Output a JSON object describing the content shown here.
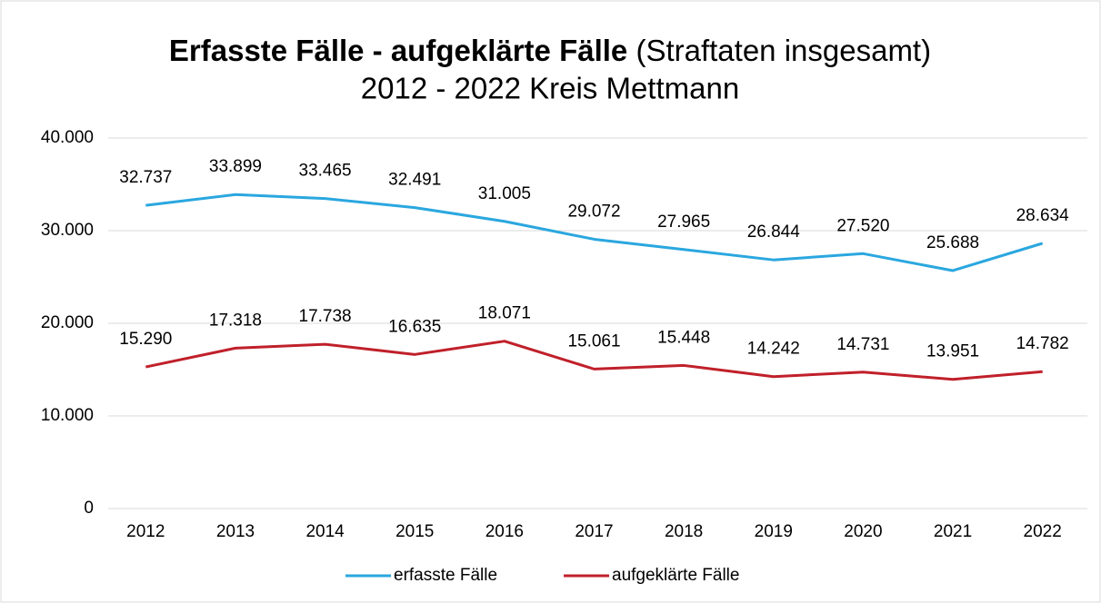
{
  "chart_data": {
    "type": "line",
    "title": "Erfasste Fälle - aufgeklärte Fälle",
    "title_note": "(Straftaten insgesamt)",
    "subtitle": "2012 - 2022 Kreis Mettmann",
    "categories": [
      "2012",
      "2013",
      "2014",
      "2015",
      "2016",
      "2017",
      "2018",
      "2019",
      "2020",
      "2021",
      "2022"
    ],
    "series": [
      {
        "name": "erfasste Fälle",
        "color": "#2aa7df",
        "values": [
          32737,
          33899,
          33465,
          32491,
          31005,
          29072,
          27965,
          26844,
          27520,
          25688,
          28634
        ],
        "value_labels": [
          "32.737",
          "33.899",
          "33.465",
          "32.491",
          "31.005",
          "29.072",
          "27.965",
          "26.844",
          "27.520",
          "25.688",
          "28.634"
        ]
      },
      {
        "name": "aufgeklärte Fälle",
        "color": "#c0202a",
        "values": [
          15290,
          17318,
          17738,
          16635,
          18071,
          15061,
          15448,
          14242,
          14731,
          13951,
          14782
        ],
        "value_labels": [
          "15.290",
          "17.318",
          "17.738",
          "16.635",
          "18.071",
          "15.061",
          "15.448",
          "14.242",
          "14.731",
          "13.951",
          "14.782"
        ]
      }
    ],
    "ylim": [
      0,
      40000
    ],
    "yticks": [
      0,
      {
        "value": 10000,
        "label": "10.000"
      },
      {
        "value": 20000,
        "label": "20.000"
      },
      {
        "value": 30000,
        "label": "30.000"
      },
      {
        "value": 40000,
        "label": "40.000"
      }
    ],
    "grid": true,
    "legend": "bottom"
  }
}
